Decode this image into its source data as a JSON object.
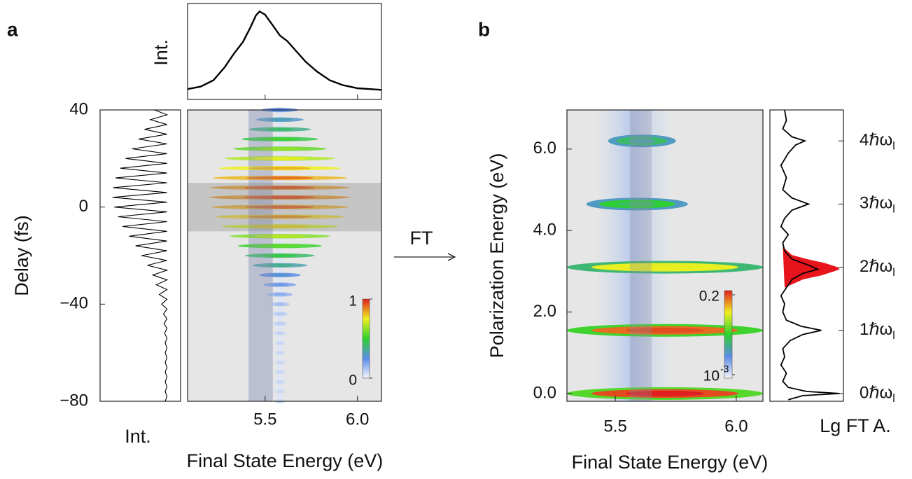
{
  "panel_labels": [
    "a",
    "b"
  ],
  "arrow_label": "FT",
  "chart_data": [
    {
      "type": "line",
      "ylabel": "Int.",
      "x": [
        5.08,
        5.15,
        5.22,
        5.28,
        5.33,
        5.38,
        5.42,
        5.45,
        5.47,
        5.5,
        5.54,
        5.58,
        5.62,
        5.67,
        5.72,
        5.78,
        5.85,
        5.92,
        6.0,
        6.13
      ],
      "values": [
        0.03,
        0.06,
        0.14,
        0.3,
        0.47,
        0.62,
        0.8,
        0.95,
        1.0,
        0.96,
        0.83,
        0.7,
        0.63,
        0.5,
        0.37,
        0.25,
        0.14,
        0.08,
        0.04,
        0.02
      ],
      "xlim": [
        5.08,
        6.13
      ],
      "ylim": [
        -0.1,
        1.1
      ]
    },
    {
      "type": "line",
      "xlabel": "Int.",
      "ylabel": "Delay (fs)",
      "delay": [
        40,
        38,
        36,
        34,
        32,
        30,
        28,
        26,
        24,
        22,
        20,
        18,
        16,
        14,
        12,
        10,
        8,
        6,
        4,
        2,
        0,
        -2,
        -4,
        -6,
        -8,
        -10,
        -12,
        -14,
        -16,
        -18,
        -20,
        -22,
        -24,
        -26,
        -28,
        -30,
        -32,
        -34,
        -36,
        -38,
        -40,
        -42,
        -44,
        -46,
        -48,
        -50,
        -52,
        -54,
        -56,
        -58,
        -60,
        -62,
        -64,
        -66,
        -68,
        -70,
        -72,
        -74,
        -76,
        -78,
        -80
      ],
      "values": [
        0.25,
        0.04,
        0.32,
        0.04,
        0.42,
        0.04,
        0.52,
        0.04,
        0.63,
        0.04,
        0.74,
        0.04,
        0.83,
        0.04,
        0.91,
        0.04,
        0.95,
        0.04,
        0.96,
        0.04,
        0.93,
        0.04,
        0.87,
        0.04,
        0.79,
        0.04,
        0.68,
        0.04,
        0.57,
        0.04,
        0.47,
        0.04,
        0.37,
        0.04,
        0.28,
        0.04,
        0.22,
        0.04,
        0.17,
        0.04,
        0.13,
        0.04,
        0.1,
        0.04,
        0.09,
        0.04,
        0.08,
        0.04,
        0.07,
        0.04,
        0.07,
        0.04,
        0.07,
        0.04,
        0.07,
        0.04,
        0.07,
        0.04,
        0.07,
        0.04,
        0.07
      ],
      "xlim": [
        -0.19,
        1.17
      ],
      "x_reversed": true,
      "ylim": [
        -80,
        40
      ],
      "yticks": [
        40,
        0,
        {
          "value": -40,
          "label": "−40"
        },
        {
          "value": -80,
          "label": "−80"
        }
      ]
    },
    {
      "type": "heatmap",
      "xlabel": "Final State Energy (eV)",
      "xlim": [
        5.08,
        6.13
      ],
      "xticks": [
        5.5,
        {
          "value": 6,
          "label": "6.0"
        }
      ],
      "ylim": [
        -80,
        40
      ],
      "fringe_center": 5.58,
      "highlight_x": [
        5.41,
        5.54
      ],
      "highlight_y": [
        -10,
        10
      ],
      "colorbar_ticks": [
        1,
        0
      ]
    },
    {
      "type": "heatmap",
      "xlabel": "Final State Energy (eV)",
      "ylabel": "Polarization Energy (eV)",
      "xlim": [
        5.3,
        6.11
      ],
      "xticks": [
        5.5,
        {
          "value": 6,
          "label": "6.0"
        }
      ],
      "ylim": [
        -0.19,
        6.96
      ],
      "yticks": [
        {
          "value": 0,
          "label": "0.0"
        },
        {
          "value": 2,
          "label": "2.0"
        },
        {
          "value": 4,
          "label": "4.0"
        },
        {
          "value": 6,
          "label": "6.0"
        }
      ],
      "highlight_x": [
        5.56,
        5.65
      ],
      "bands": {
        "energy": [
          0,
          1.55,
          3.1,
          4.65,
          6.2
        ],
        "values": [
          0.2,
          0.15,
          0.05,
          0.01,
          0.006
        ],
        "x_from": [
          5.3,
          5.3,
          5.3,
          5.38,
          5.47
        ],
        "x_to": [
          6.11,
          6.11,
          6.11,
          5.8,
          5.75
        ]
      },
      "colorbar_ticks": [
        0.2,
        {
          "value": 0.001,
          "label": "10",
          "exponent": "-3"
        }
      ]
    },
    {
      "type": "line",
      "xlabel": "Lg FT A.",
      "energy": [
        -0.15,
        -0.05,
        0.0,
        0.05,
        0.15,
        0.3,
        0.5,
        0.7,
        0.9,
        1.1,
        1.3,
        1.45,
        1.55,
        1.65,
        1.8,
        2.0,
        2.2,
        2.4,
        2.6,
        2.8,
        2.95,
        3.05,
        3.15,
        3.3,
        3.5,
        3.7,
        3.9,
        4.1,
        4.3,
        4.5,
        4.65,
        4.8,
        5.0,
        5.3,
        5.6,
        5.9,
        6.1,
        6.2,
        6.3,
        6.5,
        6.7,
        6.96
      ],
      "values": [
        -3.0,
        -2.2,
        -0.2,
        -2.0,
        -3.0,
        -3.3,
        -3.1,
        -3.4,
        -3.2,
        -3.3,
        -2.9,
        -2.2,
        -1.2,
        -2.3,
        -3.1,
        -3.3,
        -3.2,
        -3.4,
        -3.1,
        -2.8,
        -2.2,
        -1.4,
        -1.9,
        -2.8,
        -3.2,
        -3.3,
        -3.0,
        -3.4,
        -3.2,
        -2.8,
        -1.9,
        -2.8,
        -3.3,
        -3.1,
        -3.4,
        -3.0,
        -2.6,
        -2.1,
        -2.8,
        -3.3,
        -3.1,
        -3.2
      ],
      "peak_energy": [
        2.6,
        2.8,
        2.9,
        3.0,
        3.05,
        3.1,
        3.2,
        3.3,
        3.4,
        3.6
      ],
      "peak_values": [
        -3.2,
        -2.2,
        -1.2,
        -0.5,
        -0.2,
        -0.3,
        -1.0,
        -2.0,
        -2.8,
        -3.3
      ],
      "peak_color": "#e8141c",
      "xlim": [
        -4,
        0
      ],
      "ylim": [
        -0.19,
        6.96
      ],
      "harmonics": {
        "energy": [
          0,
          1.55,
          3.1,
          4.65,
          6.2
        ],
        "labels": [
          "0ℏω",
          "1ℏω",
          "2ℏω",
          "3ℏω",
          "4ℏω"
        ],
        "subscript": "l"
      }
    }
  ]
}
